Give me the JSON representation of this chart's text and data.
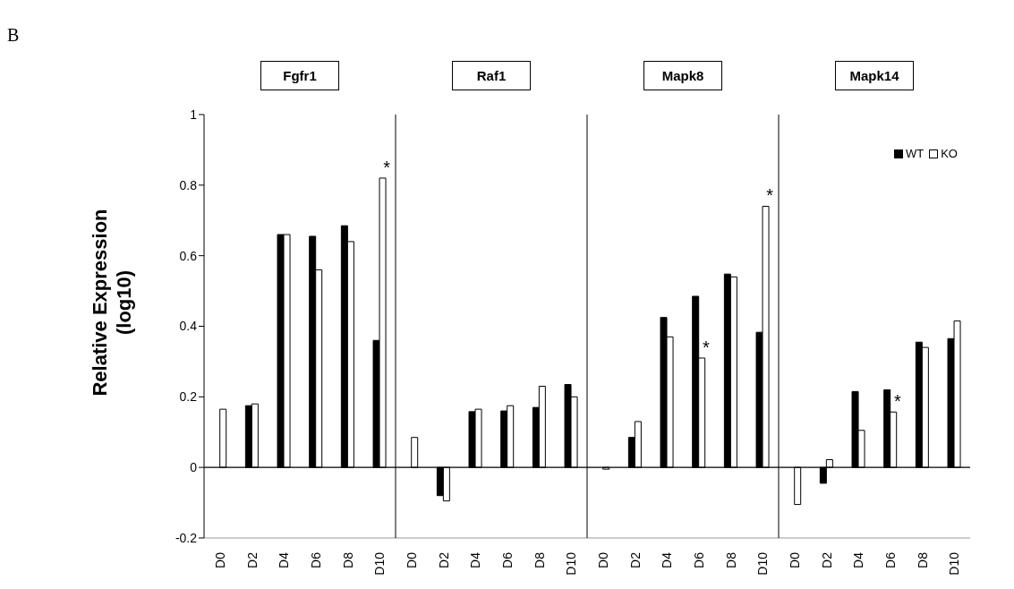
{
  "chart_data": [
    {
      "type": "bar",
      "title": "Fgfr1",
      "ylabel": "Relative Expression (log10)",
      "annotations": [
        "B",
        {
          "text": "*",
          "x": "D10",
          "y": 0.82
        }
      ],
      "categories": [
        "D0",
        "D2",
        "D4",
        "D6",
        "D8",
        "D10"
      ],
      "series": [
        {
          "color": "#000000",
          "values": [
            0,
            0.175,
            0.66,
            0.655,
            0.685,
            0.36
          ]
        },
        {
          "color": "#ffffff",
          "values": [
            0.165,
            0.18,
            0.66,
            0.56,
            0.64,
            0.82
          ]
        }
      ],
      "ylim": [
        -0.2,
        1
      ],
      "yticks": [
        -0.2,
        0,
        0.2,
        0.4,
        0.6,
        0.8,
        1
      ],
      "ref_lines": [
        {
          "axis": "y",
          "value": 0
        }
      ],
      "grid": false,
      "legend": false
    },
    {
      "type": "bar",
      "title": "Raf1",
      "categories": [
        "D0",
        "D2",
        "D4",
        "D6",
        "D8",
        "D10"
      ],
      "series": [
        {
          "color": "#000000",
          "values": [
            0,
            -0.08,
            0.158,
            0.16,
            0.17,
            0.235
          ]
        },
        {
          "color": "#ffffff",
          "values": [
            0.085,
            -0.095,
            0.165,
            0.175,
            0.23,
            0.2
          ]
        }
      ],
      "ylim": [
        -0.2,
        1
      ],
      "ref_lines": [
        {
          "axis": "y",
          "value": 0
        }
      ],
      "tick_labels": "x",
      "grid": false,
      "legend": false
    },
    {
      "type": "bar",
      "title": "Mapk8",
      "annotations": [
        {
          "text": "*",
          "x": "D6",
          "y": 0.31
        },
        {
          "text": "*",
          "x": "D10",
          "y": 0.74
        }
      ],
      "categories": [
        "D0",
        "D2",
        "D4",
        "D6",
        "D8",
        "D10"
      ],
      "series": [
        {
          "color": "#000000",
          "values": [
            0,
            0.085,
            0.425,
            0.485,
            0.548,
            0.383
          ]
        },
        {
          "color": "#ffffff",
          "values": [
            -0.005,
            0.13,
            0.37,
            0.31,
            0.54,
            0.74
          ]
        }
      ],
      "ylim": [
        -0.2,
        1
      ],
      "ref_lines": [
        {
          "axis": "y",
          "value": 0
        }
      ],
      "tick_labels": "x",
      "grid": false,
      "legend": false
    },
    {
      "type": "bar",
      "title": "Mapk14",
      "annotations": [
        {
          "text": "*",
          "x": "D6",
          "y": 0.157
        }
      ],
      "categories": [
        "D0",
        "D2",
        "D4",
        "D6",
        "D8",
        "D10"
      ],
      "series": [
        {
          "name": "WT",
          "color": "#000000",
          "values": [
            0,
            -0.045,
            0.215,
            0.22,
            0.355,
            0.365
          ]
        },
        {
          "name": "KO",
          "color": "#ffffff",
          "values": [
            -0.105,
            0.022,
            0.105,
            0.157,
            0.34,
            0.415
          ]
        }
      ],
      "ylim": [
        -0.2,
        1
      ],
      "ref_lines": [
        {
          "axis": "y",
          "value": 0
        }
      ],
      "tick_labels": "x",
      "grid": false,
      "legend": "top right"
    }
  ]
}
